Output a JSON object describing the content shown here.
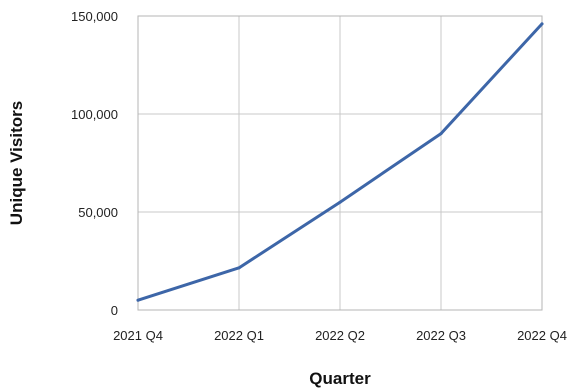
{
  "chart_data": {
    "type": "line",
    "title": "",
    "xlabel": "Quarter",
    "ylabel": "Unique Visitors",
    "categories": [
      "2021 Q4",
      "2022 Q1",
      "2022 Q2",
      "2022 Q3",
      "2022 Q4"
    ],
    "series": [
      {
        "values": [
          5000,
          21500,
          55000,
          90000,
          146000
        ],
        "color": "#3d66a8"
      }
    ],
    "ylim": [
      0,
      150000
    ],
    "yticks": [
      0,
      50000,
      100000,
      150000
    ],
    "ytick_labels": [
      "0",
      "50,000",
      "100,000",
      "150,000"
    ],
    "grid": true,
    "legend": "none"
  }
}
